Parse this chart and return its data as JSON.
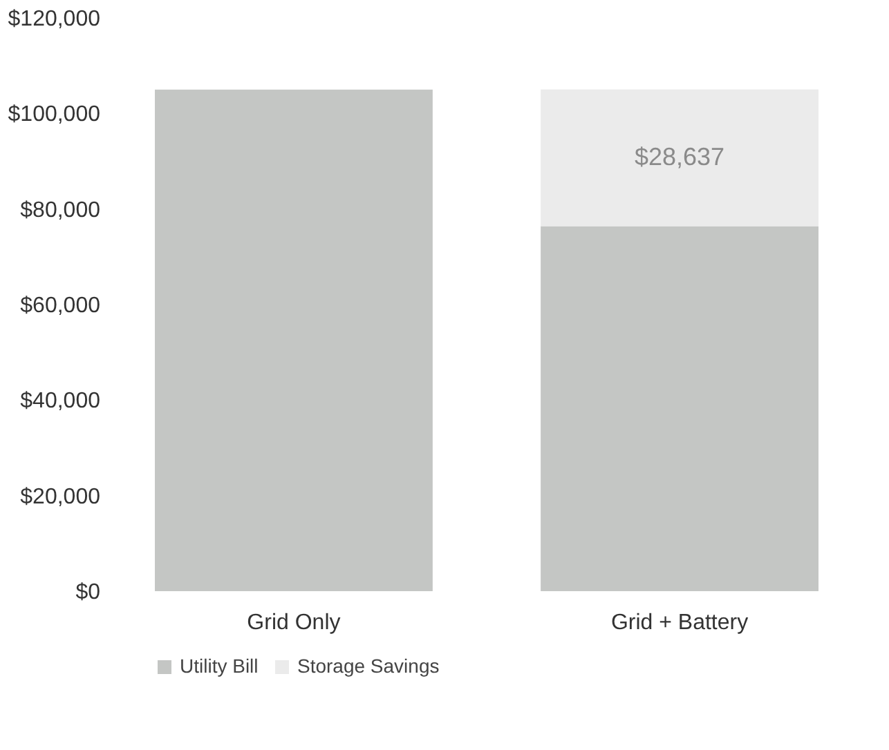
{
  "chart_data": {
    "type": "bar",
    "stacked": true,
    "categories": [
      "Grid Only",
      "Grid + Battery"
    ],
    "series": [
      {
        "name": "Utility Bill",
        "color": "#c4c6c4",
        "values": [
          105000,
          76400
        ]
      },
      {
        "name": "Storage Savings",
        "color": "#ebebeb",
        "values": [
          null,
          28637
        ],
        "value_labels": [
          null,
          "$28,637"
        ]
      }
    ],
    "ylim": [
      0,
      120000
    ],
    "yticks": [
      {
        "value": 0,
        "label": "$0"
      },
      {
        "value": 20000,
        "label": "$20,000"
      },
      {
        "value": 40000,
        "label": "$40,000"
      },
      {
        "value": 60000,
        "label": "$60,000"
      },
      {
        "value": 80000,
        "label": "$80,000"
      },
      {
        "value": 100000,
        "label": "$100,000"
      },
      {
        "value": 120000,
        "label": "$120,000"
      }
    ],
    "grid": false,
    "legend": "bottom"
  }
}
